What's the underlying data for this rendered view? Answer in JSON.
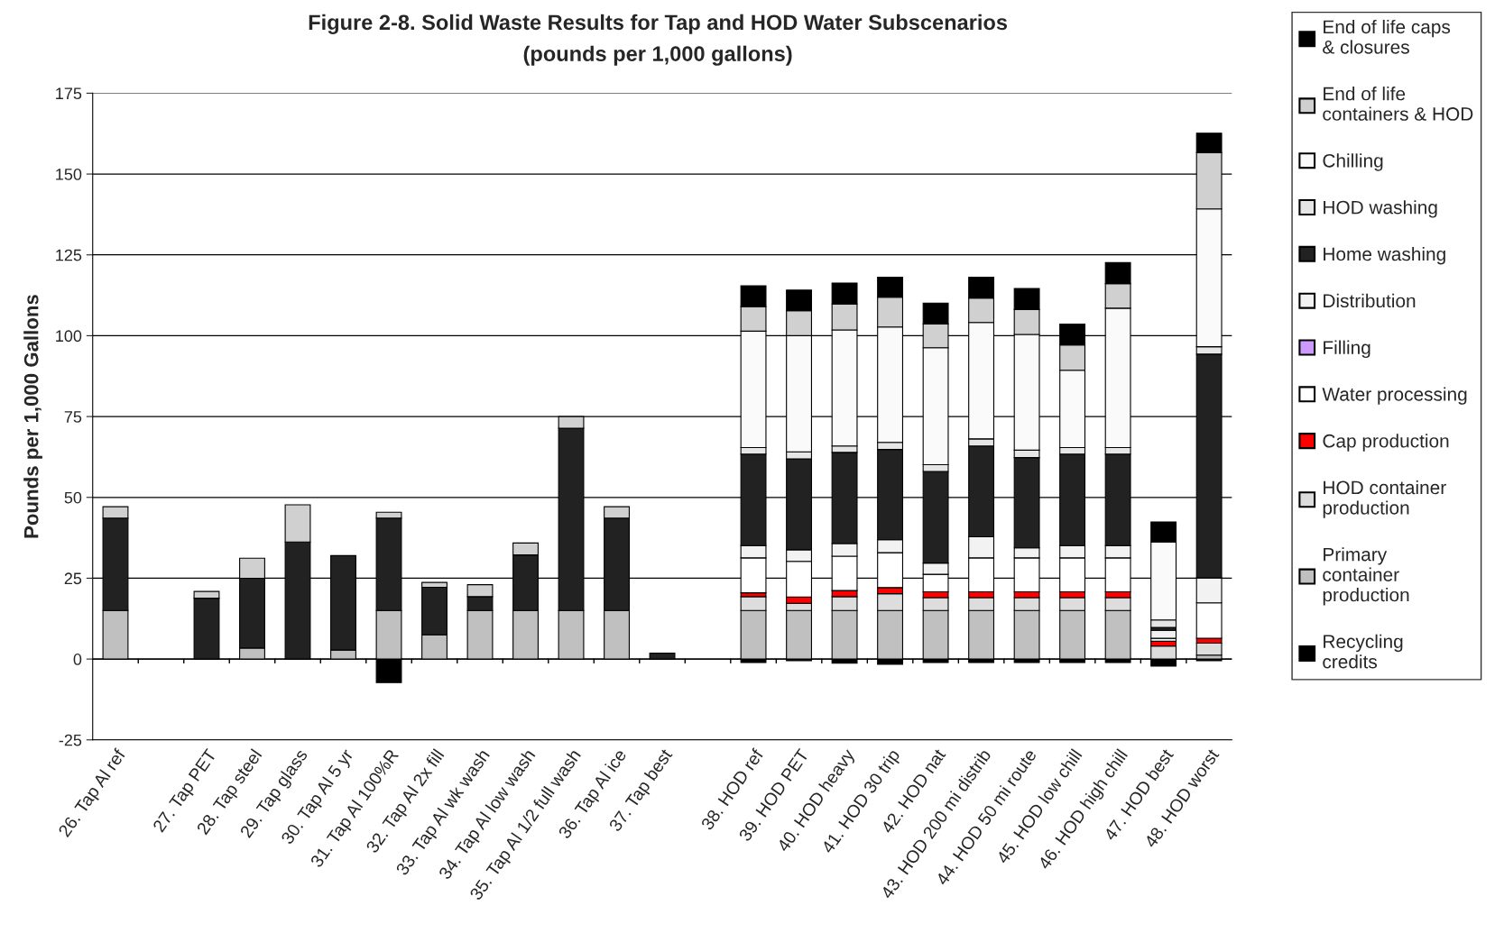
{
  "chart_data": {
    "type": "bar",
    "stacked": true,
    "title": "Figure 2-8. Solid Waste Results for Tap and HOD Water Subscenarios",
    "subtitle": "(pounds per 1,000 gallons)",
    "ylabel": "Pounds per 1,000 Gallons",
    "categories": [
      "26. Tap Al ref",
      null,
      "27. Tap PET",
      "28. Tap steel",
      "29. Tap glass",
      "30. Tap Al 5 yr",
      "31. Tap Al 100%R",
      "32. Tap Al 2x fill",
      "33. Tap Al wk wash",
      "34. Tap Al low wash",
      "35. Tap Al 1/2 full wash",
      "36. Tap Al ice",
      "37. Tap best",
      null,
      "38. HOD ref",
      "39. HOD PET",
      "40. HOD heavy",
      "41. HOD 30 trip",
      "42. HOD nat",
      "43. HOD 200 mi distrib",
      "44. HOD 50 mi route",
      "45. HOD low chill",
      "46. HOD high chill",
      "47. HOD best",
      "48. HOD worst"
    ],
    "ylim": [
      -25,
      175
    ],
    "yticks": [
      -25,
      0,
      25,
      50,
      75,
      100,
      125,
      150,
      175
    ],
    "grid": "y",
    "legend": "right",
    "series": [
      {
        "name": "Recycling credits",
        "color": "#000000",
        "values": [
          0,
          null,
          0,
          0,
          0,
          0,
          -7.3,
          0,
          0,
          0,
          0,
          0,
          0,
          null,
          -1.1,
          -0.5,
          -1.3,
          -1.6,
          -1.1,
          -1.1,
          -1.1,
          -1.1,
          -1.1,
          -2.2,
          -0.5
        ]
      },
      {
        "name": "Primary container production",
        "color": "#c0c0c0",
        "values": [
          15,
          null,
          0,
          3.4,
          0,
          2.8,
          15,
          7.5,
          15,
          15,
          15,
          15,
          0,
          null,
          15,
          15,
          15,
          15,
          15,
          15,
          15,
          15,
          15,
          0,
          1.2
        ]
      },
      {
        "name": "HOD container production",
        "color": "#dddddd",
        "values": [
          0,
          null,
          0,
          0,
          0,
          0,
          0,
          0,
          0,
          0,
          0,
          0,
          0,
          null,
          4.3,
          2.2,
          4.3,
          5.2,
          4,
          4,
          4,
          4,
          4,
          4,
          3.7
        ]
      },
      {
        "name": "Cap production",
        "color": "#ff0000",
        "values": [
          0,
          null,
          0,
          0,
          0,
          0,
          0,
          0,
          0,
          0,
          0,
          0,
          0,
          null,
          1.2,
          2,
          1.9,
          1.9,
          1.8,
          1.8,
          1.8,
          1.8,
          1.8,
          1.5,
          1.5
        ]
      },
      {
        "name": "Water processing",
        "color": "#ffffff",
        "values": [
          0,
          null,
          0,
          0,
          0,
          0,
          0,
          0,
          0,
          0,
          0,
          0,
          0,
          null,
          10.8,
          11,
          10.6,
          10.8,
          5.4,
          10.5,
          10.5,
          10.5,
          10.5,
          0.9,
          11
        ]
      },
      {
        "name": "Filling",
        "color": "#cc99ff",
        "values": [
          0,
          null,
          0,
          0,
          0,
          0,
          0,
          0,
          0,
          0,
          0,
          0,
          0,
          null,
          0,
          0,
          0,
          0,
          0,
          0,
          0,
          0,
          0,
          0,
          0
        ]
      },
      {
        "name": "Distribution",
        "color": "#f2f2f2",
        "values": [
          0,
          null,
          0,
          0,
          0,
          0,
          0,
          0,
          0,
          0,
          0,
          0,
          0,
          null,
          3.8,
          3.6,
          3.9,
          4,
          3.5,
          6.5,
          3.1,
          3.8,
          3.8,
          2.5,
          7.7
        ]
      },
      {
        "name": "Home washing",
        "color": "#222222",
        "values": [
          28.6,
          null,
          18.8,
          21.6,
          36.2,
          29.2,
          28.6,
          14.7,
          4.3,
          17.2,
          56.4,
          28.6,
          1.8,
          null,
          28.3,
          28.1,
          28.2,
          27.9,
          28.3,
          28.1,
          27.9,
          28.3,
          28.3,
          0.9,
          69.2
        ]
      },
      {
        "name": "HOD washing",
        "color": "#e6e6e6",
        "values": [
          0,
          null,
          0,
          0,
          0,
          0,
          0,
          0,
          0,
          0,
          0,
          0,
          0,
          null,
          2,
          2.2,
          2,
          2.2,
          2.1,
          2.2,
          2.3,
          2,
          2,
          2.3,
          2.3
        ]
      },
      {
        "name": "Chilling",
        "color": "#fafafa",
        "values": [
          0,
          null,
          0,
          0,
          0,
          0,
          0,
          0,
          0,
          0,
          0,
          0,
          0,
          null,
          36,
          35.9,
          35.9,
          35.7,
          36.2,
          36,
          35.8,
          23.9,
          43.1,
          24.1,
          42.6
        ]
      },
      {
        "name": "End of life containers & HOD",
        "color": "#d0d0d0",
        "values": [
          3.5,
          null,
          2.1,
          6.2,
          11.5,
          0,
          1.8,
          1.5,
          3.7,
          3.7,
          3.6,
          3.5,
          0,
          null,
          7.6,
          7.7,
          8,
          9.2,
          7.3,
          7.5,
          7.7,
          7.8,
          7.6,
          0,
          17.4
        ]
      },
      {
        "name": "End of life caps & closures",
        "color": "#000000",
        "values": [
          0,
          null,
          0,
          0,
          0,
          0,
          0,
          0,
          0,
          0,
          0,
          0,
          0,
          null,
          6.4,
          6.4,
          6.5,
          6.2,
          6.5,
          6.5,
          6.5,
          6.5,
          6.5,
          6.2,
          6
        ]
      }
    ]
  }
}
